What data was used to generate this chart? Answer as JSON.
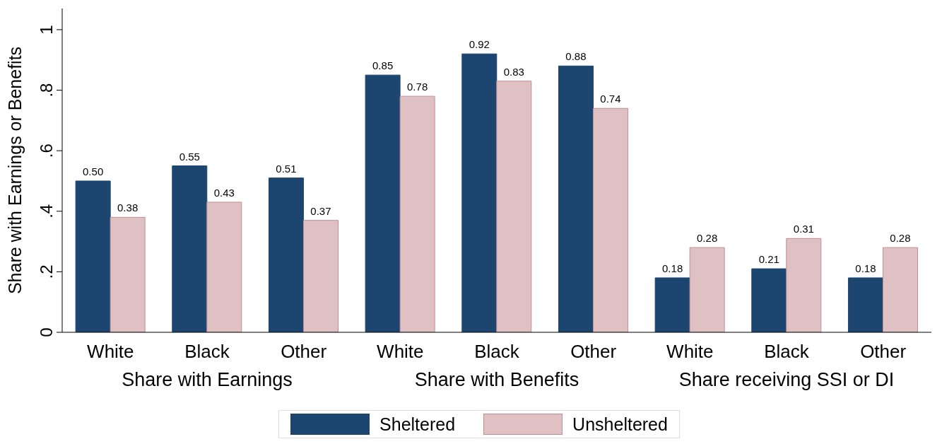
{
  "chart_data": {
    "type": "bar",
    "ylabel": "Share with Earnings or Benefits",
    "categories": [
      "White",
      "Black",
      "Other",
      "White",
      "Black",
      "Other",
      "White",
      "Black",
      "Other"
    ],
    "series": [
      {
        "name": "Sheltered",
        "color": "#1c4670",
        "values": [
          0.5,
          0.55,
          0.51,
          0.85,
          0.92,
          0.88,
          0.18,
          0.21,
          0.18
        ],
        "value_labels": [
          "0.50",
          "0.55",
          "0.51",
          "0.85",
          "0.92",
          "0.88",
          "0.18",
          "0.21",
          "0.18"
        ]
      },
      {
        "name": "Unsheltered",
        "color": "#dfc1c3",
        "values": [
          0.38,
          0.43,
          0.37,
          0.78,
          0.83,
          0.74,
          0.28,
          0.31,
          0.28
        ],
        "value_labels": [
          "0.38",
          "0.43",
          "0.37",
          "0.78",
          "0.83",
          "0.74",
          "0.28",
          "0.31",
          "0.28"
        ]
      }
    ],
    "annotations": [
      "Share with Earnings",
      "Share with Benefits",
      "Share receiving SSI or DI"
    ],
    "ylim": [
      0,
      1.07
    ],
    "yticks": [
      0,
      {
        "value": 0.2,
        "label": ".2"
      },
      {
        "value": 0.4,
        "label": ".4"
      },
      {
        "value": 0.6,
        "label": ".6"
      },
      {
        "value": 0.8,
        "label": ".8"
      },
      1
    ],
    "grid": false,
    "legend": "bottom"
  }
}
